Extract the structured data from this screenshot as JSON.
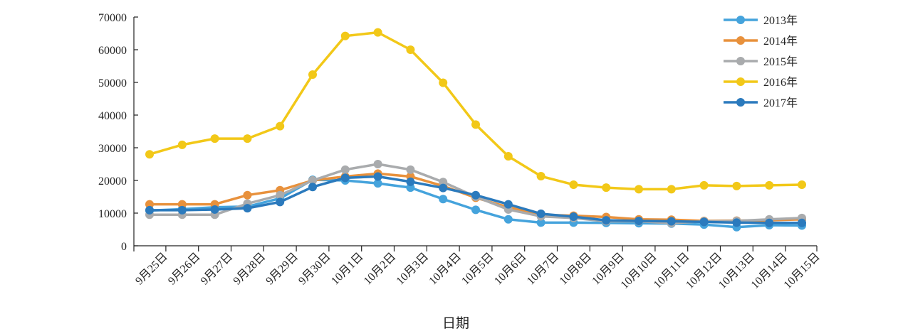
{
  "chart_data": {
    "type": "line",
    "title": "",
    "xlabel": "日期",
    "ylabel": "",
    "ylim": [
      0,
      70000
    ],
    "yticks": [
      0,
      10000,
      20000,
      30000,
      40000,
      50000,
      60000,
      70000
    ],
    "categories": [
      "9月25日",
      "9月26日",
      "9月27日",
      "9月28日",
      "9月29日",
      "9月30日",
      "10月1日",
      "10月2日",
      "10月3日",
      "10月4日",
      "10月5日",
      "10月6日",
      "10月7日",
      "10月8日",
      "10月9日",
      "10月10日",
      "10月11日",
      "10月12日",
      "10月13日",
      "10月14日",
      "10月15日"
    ],
    "legend_position": "top-right",
    "grid": false,
    "series": [
      {
        "name": "2013年",
        "color": "#45a3dc",
        "values": [
          10800,
          11200,
          11800,
          12000,
          14500,
          20200,
          20000,
          19100,
          17800,
          14300,
          11000,
          8100,
          7100,
          7100,
          7000,
          6900,
          6800,
          6500,
          5700,
          6300,
          6200
        ]
      },
      {
        "name": "2014年",
        "color": "#e8913c",
        "values": [
          12700,
          12700,
          12700,
          15500,
          17000,
          20000,
          21200,
          22100,
          21200,
          18300,
          14700,
          11800,
          9500,
          9200,
          8800,
          8100,
          8000,
          7600,
          7700,
          7800,
          8100
        ]
      },
      {
        "name": "2015年",
        "color": "#a9abad",
        "values": [
          9500,
          9500,
          9500,
          12900,
          15500,
          20000,
          23300,
          25000,
          23300,
          19500,
          15000,
          11100,
          9000,
          8500,
          7500,
          7500,
          6900,
          7500,
          7600,
          8100,
          8500
        ]
      },
      {
        "name": "2016年",
        "color": "#f2c818",
        "values": [
          28000,
          30900,
          32800,
          32800,
          36600,
          52400,
          64200,
          65300,
          60000,
          49900,
          37100,
          27400,
          21300,
          18700,
          17800,
          17300,
          17300,
          18500,
          18300,
          18500,
          18700
        ]
      },
      {
        "name": "2017年",
        "color": "#2b7abd",
        "values": [
          10900,
          10900,
          11100,
          11500,
          13400,
          18000,
          20800,
          21200,
          19600,
          17700,
          15500,
          12700,
          9800,
          8900,
          7800,
          7600,
          7500,
          7300,
          7100,
          7000,
          7000
        ]
      }
    ]
  }
}
